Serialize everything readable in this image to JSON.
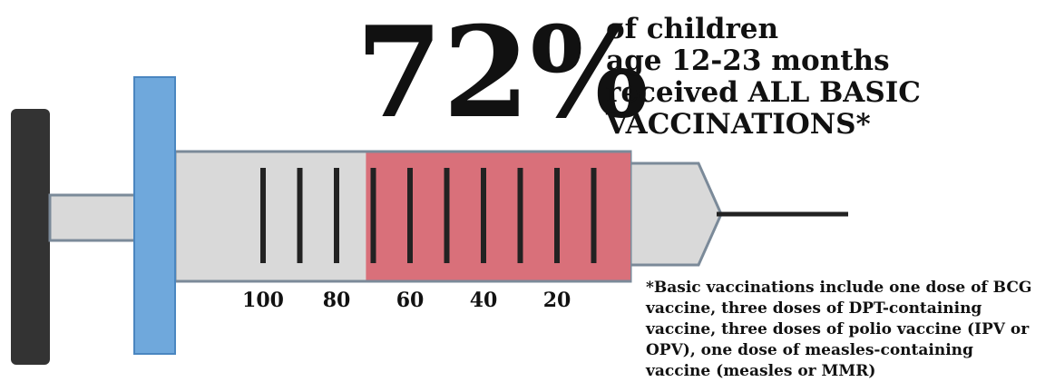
{
  "chart_data": {
    "type": "syringe",
    "value": 72,
    "value_label": "72%",
    "title_lines": [
      "of children",
      "age 12-23 months",
      "received ALL BASIC",
      "VACCINATIONS*"
    ],
    "xlim": [
      100,
      0
    ],
    "xticks": [
      100,
      80,
      60,
      40,
      20
    ],
    "xticks_minor": [
      90,
      70,
      50,
      30,
      10
    ],
    "color": "#d9707a",
    "footnote_lines": [
      "*Basic vaccinations include one dose of BCG",
      "vaccine, three doses of DPT-containing",
      "vaccine, three doses of polio vaccine (IPV or",
      "OPV), one dose of measles-containing",
      "vaccine (measles or MMR)"
    ]
  }
}
